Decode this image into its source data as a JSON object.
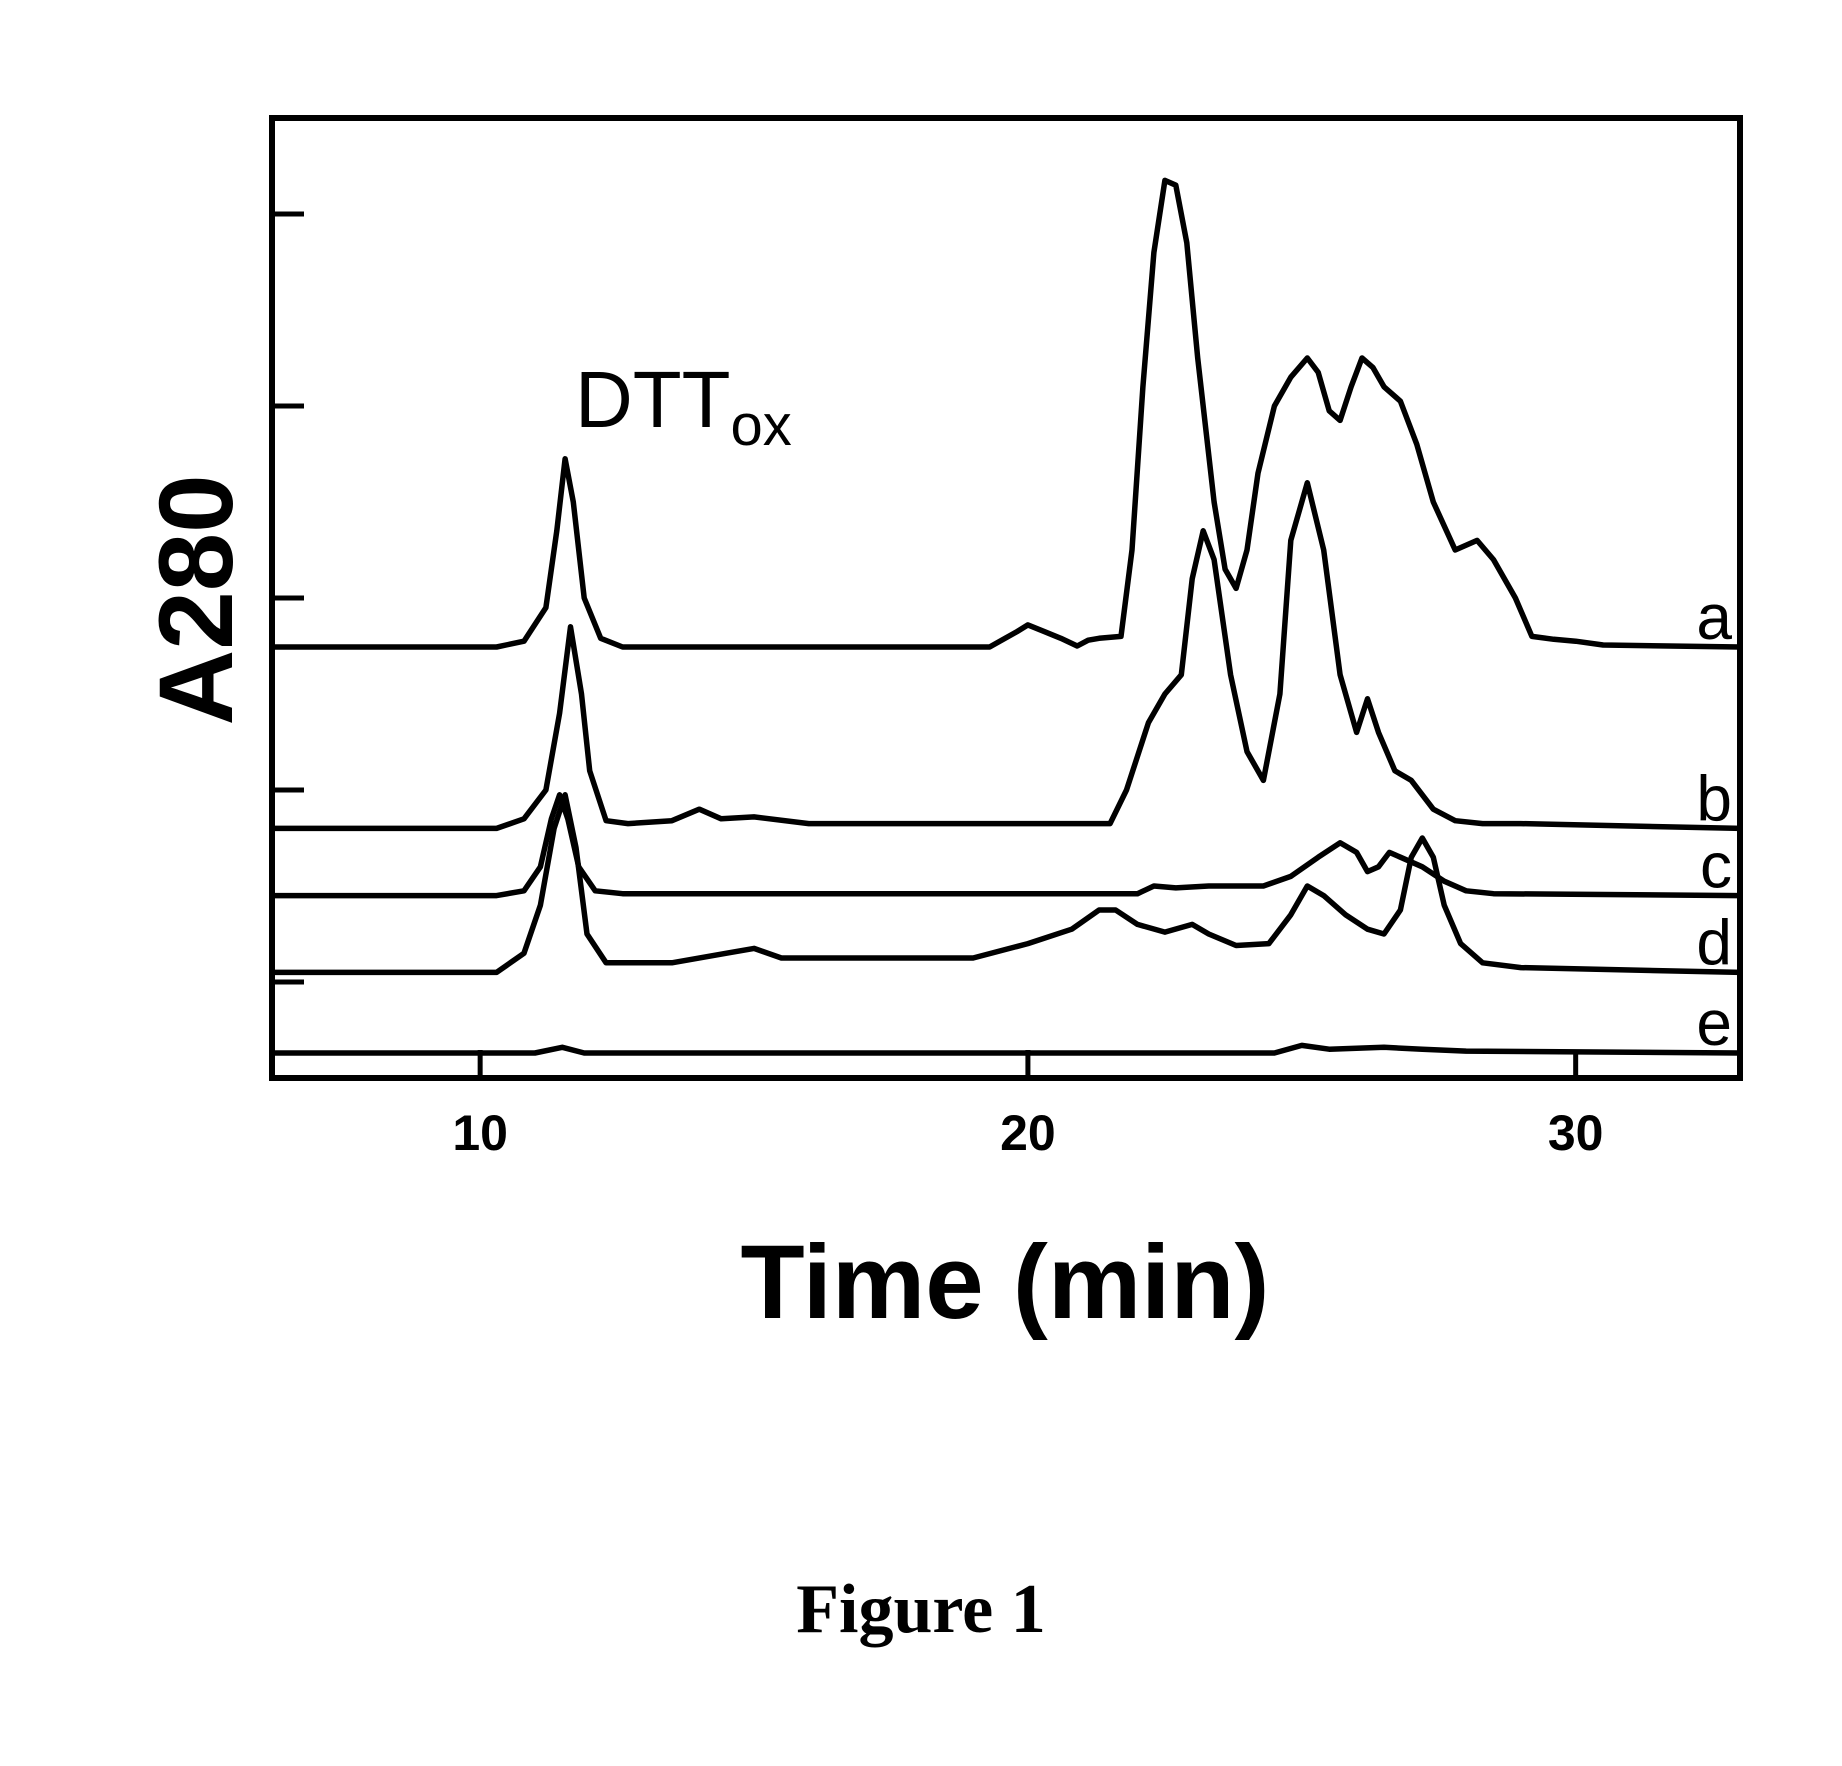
{
  "chart_data": {
    "type": "line",
    "xlabel": "Time (min)",
    "ylabel": "A280",
    "xlim": [
      6.2,
      33
    ],
    "x_ticks": [
      10,
      20,
      30
    ],
    "ylim": [
      0,
      1
    ],
    "y_tick_marks": [
      0.1,
      0.3,
      0.5,
      0.7,
      0.9
    ],
    "grid": false,
    "annotation": {
      "main": "DTT",
      "subscript": "ox",
      "x": 11.5
    },
    "series": [
      {
        "name": "a",
        "points": [
          [
            6.2,
            0.449
          ],
          [
            10.3,
            0.449
          ],
          [
            10.8,
            0.455
          ],
          [
            11.2,
            0.49
          ],
          [
            11.4,
            0.57
          ],
          [
            11.55,
            0.645
          ],
          [
            11.7,
            0.6
          ],
          [
            11.9,
            0.5
          ],
          [
            12.2,
            0.458
          ],
          [
            12.6,
            0.449
          ],
          [
            19.3,
            0.449
          ],
          [
            19.8,
            0.465
          ],
          [
            20.0,
            0.472
          ],
          [
            20.3,
            0.465
          ],
          [
            20.6,
            0.458
          ],
          [
            20.9,
            0.45
          ],
          [
            21.1,
            0.456
          ],
          [
            21.3,
            0.458
          ],
          [
            21.7,
            0.46
          ],
          [
            21.9,
            0.55
          ],
          [
            22.1,
            0.72
          ],
          [
            22.3,
            0.86
          ],
          [
            22.5,
            0.935
          ],
          [
            22.7,
            0.93
          ],
          [
            22.9,
            0.87
          ],
          [
            23.1,
            0.75
          ],
          [
            23.4,
            0.6
          ],
          [
            23.6,
            0.53
          ],
          [
            23.8,
            0.51
          ],
          [
            24.0,
            0.55
          ],
          [
            24.2,
            0.63
          ],
          [
            24.5,
            0.7
          ],
          [
            24.8,
            0.73
          ],
          [
            25.1,
            0.75
          ],
          [
            25.3,
            0.735
          ],
          [
            25.5,
            0.695
          ],
          [
            25.7,
            0.685
          ],
          [
            25.9,
            0.72
          ],
          [
            26.1,
            0.75
          ],
          [
            26.3,
            0.74
          ],
          [
            26.5,
            0.72
          ],
          [
            26.8,
            0.705
          ],
          [
            27.1,
            0.66
          ],
          [
            27.4,
            0.6
          ],
          [
            27.8,
            0.55
          ],
          [
            28.2,
            0.56
          ],
          [
            28.5,
            0.54
          ],
          [
            28.9,
            0.5
          ],
          [
            29.2,
            0.46
          ],
          [
            29.6,
            0.457
          ],
          [
            30.0,
            0.455
          ],
          [
            30.5,
            0.451
          ],
          [
            33,
            0.449
          ]
        ]
      },
      {
        "name": "b",
        "points": [
          [
            6.2,
            0.26
          ],
          [
            10.3,
            0.26
          ],
          [
            10.8,
            0.27
          ],
          [
            11.2,
            0.3
          ],
          [
            11.45,
            0.38
          ],
          [
            11.65,
            0.47
          ],
          [
            11.85,
            0.4
          ],
          [
            12.0,
            0.32
          ],
          [
            12.3,
            0.268
          ],
          [
            12.7,
            0.265
          ],
          [
            13.5,
            0.268
          ],
          [
            14.0,
            0.28
          ],
          [
            14.4,
            0.27
          ],
          [
            15.0,
            0.272
          ],
          [
            16.0,
            0.265
          ],
          [
            18.0,
            0.265
          ],
          [
            21.5,
            0.265
          ],
          [
            21.8,
            0.3
          ],
          [
            22.2,
            0.37
          ],
          [
            22.5,
            0.4
          ],
          [
            22.8,
            0.42
          ],
          [
            23.0,
            0.52
          ],
          [
            23.2,
            0.57
          ],
          [
            23.4,
            0.54
          ],
          [
            23.7,
            0.42
          ],
          [
            24.0,
            0.34
          ],
          [
            24.3,
            0.31
          ],
          [
            24.6,
            0.4
          ],
          [
            24.8,
            0.56
          ],
          [
            25.1,
            0.62
          ],
          [
            25.4,
            0.55
          ],
          [
            25.7,
            0.42
          ],
          [
            26.0,
            0.36
          ],
          [
            26.2,
            0.395
          ],
          [
            26.4,
            0.36
          ],
          [
            26.7,
            0.32
          ],
          [
            27.0,
            0.31
          ],
          [
            27.4,
            0.28
          ],
          [
            27.8,
            0.268
          ],
          [
            28.3,
            0.265
          ],
          [
            29.0,
            0.265
          ],
          [
            33,
            0.26
          ]
        ]
      },
      {
        "name": "c",
        "points": [
          [
            6.2,
            0.19
          ],
          [
            10.3,
            0.19
          ],
          [
            10.8,
            0.195
          ],
          [
            11.1,
            0.22
          ],
          [
            11.3,
            0.27
          ],
          [
            11.45,
            0.295
          ],
          [
            11.6,
            0.27
          ],
          [
            11.8,
            0.22
          ],
          [
            12.1,
            0.195
          ],
          [
            12.6,
            0.192
          ],
          [
            22.0,
            0.192
          ],
          [
            22.3,
            0.2
          ],
          [
            22.7,
            0.198
          ],
          [
            23.3,
            0.2
          ],
          [
            24.3,
            0.2
          ],
          [
            24.8,
            0.21
          ],
          [
            25.3,
            0.23
          ],
          [
            25.7,
            0.245
          ],
          [
            26.0,
            0.235
          ],
          [
            26.2,
            0.215
          ],
          [
            26.4,
            0.22
          ],
          [
            26.6,
            0.235
          ],
          [
            26.8,
            0.23
          ],
          [
            27.2,
            0.22
          ],
          [
            27.6,
            0.205
          ],
          [
            28.0,
            0.195
          ],
          [
            28.5,
            0.192
          ],
          [
            33,
            0.19
          ]
        ]
      },
      {
        "name": "d",
        "points": [
          [
            6.2,
            0.11
          ],
          [
            10.3,
            0.11
          ],
          [
            10.8,
            0.13
          ],
          [
            11.1,
            0.18
          ],
          [
            11.35,
            0.26
          ],
          [
            11.55,
            0.295
          ],
          [
            11.75,
            0.24
          ],
          [
            11.95,
            0.15
          ],
          [
            12.3,
            0.12
          ],
          [
            13.5,
            0.12
          ],
          [
            14.5,
            0.13
          ],
          [
            15.0,
            0.135
          ],
          [
            15.5,
            0.125
          ],
          [
            16.5,
            0.125
          ],
          [
            19.0,
            0.125
          ],
          [
            20.0,
            0.14
          ],
          [
            20.8,
            0.155
          ],
          [
            21.3,
            0.175
          ],
          [
            21.6,
            0.175
          ],
          [
            22.0,
            0.16
          ],
          [
            22.5,
            0.152
          ],
          [
            23.0,
            0.16
          ],
          [
            23.3,
            0.15
          ],
          [
            23.8,
            0.138
          ],
          [
            24.4,
            0.14
          ],
          [
            24.8,
            0.17
          ],
          [
            25.1,
            0.2
          ],
          [
            25.4,
            0.19
          ],
          [
            25.8,
            0.17
          ],
          [
            26.2,
            0.155
          ],
          [
            26.5,
            0.15
          ],
          [
            26.8,
            0.175
          ],
          [
            27.0,
            0.23
          ],
          [
            27.2,
            0.25
          ],
          [
            27.4,
            0.23
          ],
          [
            27.6,
            0.18
          ],
          [
            27.9,
            0.14
          ],
          [
            28.3,
            0.12
          ],
          [
            29.0,
            0.115
          ],
          [
            33,
            0.11
          ]
        ]
      },
      {
        "name": "e",
        "points": [
          [
            6.2,
            0.026
          ],
          [
            11.0,
            0.026
          ],
          [
            11.5,
            0.032
          ],
          [
            11.9,
            0.026
          ],
          [
            24.5,
            0.026
          ],
          [
            25.0,
            0.034
          ],
          [
            25.5,
            0.03
          ],
          [
            26.5,
            0.032
          ],
          [
            27.2,
            0.03
          ],
          [
            28.0,
            0.028
          ],
          [
            33,
            0.026
          ]
        ]
      }
    ]
  },
  "caption": "Figure 1"
}
